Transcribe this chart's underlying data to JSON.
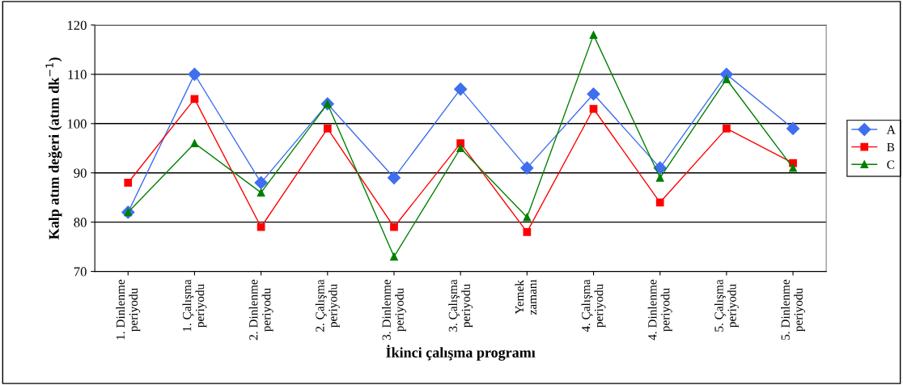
{
  "chart_data": {
    "type": "line",
    "xlabel": "İkinci çalışma programı",
    "ylabel": "Kalp atım değeri (atım dk$^{−1}$)",
    "categories": [
      "1. Dinlenme\nperiyodu",
      "1. Çalışma\nperiyodu",
      "2. Dinlenme\nperiyodu",
      "2. Çalışma\nperiyodu",
      "3. Dinlenme\nperiyodu",
      "3. Çalışma\nperiyodu",
      "Yemek\nzamanı",
      "4. Çalışma\nperiyodu",
      "4. Dinlenme\nperiyodu",
      "5. Çalışma\nperiyodu",
      "5. Dinlenme\nperiyodu"
    ],
    "series": [
      {
        "name": "A",
        "color": "#3f6fef",
        "marker": "diamond",
        "values": [
          82,
          110,
          88,
          104,
          89,
          107,
          91,
          106,
          91,
          110,
          99
        ]
      },
      {
        "name": "B",
        "color": "#ff0000",
        "marker": "square",
        "values": [
          88,
          105,
          79,
          99,
          79,
          96,
          78,
          103,
          84,
          99,
          92
        ]
      },
      {
        "name": "C",
        "color": "#008000",
        "marker": "triangle",
        "values": [
          82,
          96,
          86,
          104,
          73,
          95,
          81,
          118,
          89,
          109,
          91
        ]
      }
    ],
    "ylim": [
      70,
      120
    ],
    "yticks": [
      70,
      80,
      90,
      100,
      110,
      120
    ],
    "grid": "y",
    "legend": "right",
    "line_style": "solid"
  }
}
